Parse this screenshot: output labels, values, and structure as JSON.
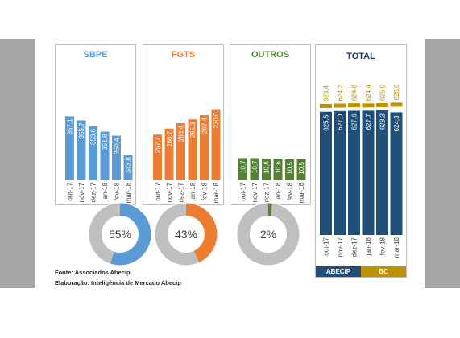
{
  "colors": {
    "sbpe": "#5b9bd5",
    "fgts": "#ed7d31",
    "outros": "#548235",
    "abecip": "#1f4e79",
    "bc": "#bf9000",
    "donut_rest": "#bfbfbf"
  },
  "categories": [
    "out-17",
    "nov-17",
    "dez-17",
    "jan-18",
    "fev-18",
    "mar-18"
  ],
  "chart_data": [
    {
      "type": "bar",
      "title": "SBPE",
      "categories": [
        "out-17",
        "nov-17",
        "dez-17",
        "jan-18",
        "fev-18",
        "mar-18"
      ],
      "series": [
        {
          "values": [
            357.1,
            355.7,
            353.6,
            351.8,
            350.4,
            343.8
          ],
          "labels": [
            "357,1",
            "355,7",
            "353,6",
            "351,8",
            "350,4",
            "343,8"
          ]
        }
      ]
    },
    {
      "type": "bar",
      "title": "FGTS",
      "categories": [
        "out-17",
        "nov-17",
        "dez-17",
        "jan-18",
        "fev-18",
        "mar-18"
      ],
      "series": [
        {
          "values": [
            257.7,
            260.7,
            263.4,
            265.3,
            267.4,
            270.0
          ],
          "labels": [
            "257,7",
            "260,7",
            "263,4",
            "265,3",
            "267,4",
            "270,0"
          ]
        }
      ]
    },
    {
      "type": "bar",
      "title": "OUTROS",
      "categories": [
        "out-17",
        "nov-17",
        "dez-17",
        "jan-18",
        "fev-18",
        "mar-18"
      ],
      "series": [
        {
          "values": [
            10.7,
            10.7,
            10.6,
            10.6,
            10.5,
            10.5
          ],
          "labels": [
            "10,7",
            "10,7",
            "10,6",
            "10,6",
            "10,5",
            "10,5"
          ]
        }
      ]
    },
    {
      "type": "bar",
      "title": "TOTAL",
      "categories": [
        "out-17",
        "nov-17",
        "dez-17",
        "jan-18",
        "fev-18",
        "mar-18"
      ],
      "series": [
        {
          "name": "ABECIP",
          "values": [
            625.5,
            627.0,
            627.6,
            627.7,
            628.3,
            624.3
          ],
          "labels": [
            "625,5",
            "627,0",
            "627,6",
            "627,7",
            "628,3",
            "624,3"
          ]
        },
        {
          "name": "BC",
          "values": [
            623.4,
            624.2,
            624.8,
            624.4,
            625.0,
            626.0
          ],
          "labels": [
            "623,4",
            "624,2",
            "624,8",
            "624,4",
            "625,0",
            "626,0"
          ]
        }
      ]
    },
    {
      "type": "pie",
      "title": "SBPE",
      "values": [
        55,
        45
      ],
      "label": "55%"
    },
    {
      "type": "pie",
      "title": "FGTS",
      "values": [
        43,
        57
      ],
      "label": "43%"
    },
    {
      "type": "pie",
      "title": "OUTROS",
      "values": [
        2,
        98
      ],
      "label": "2%"
    }
  ],
  "legend": {
    "abecip": "ABECIP",
    "bc": "BC"
  },
  "footer": {
    "source": "Fonte: Associados Abecip",
    "elaboration": "Elaboração: Inteligência de Mercado Abecip"
  }
}
